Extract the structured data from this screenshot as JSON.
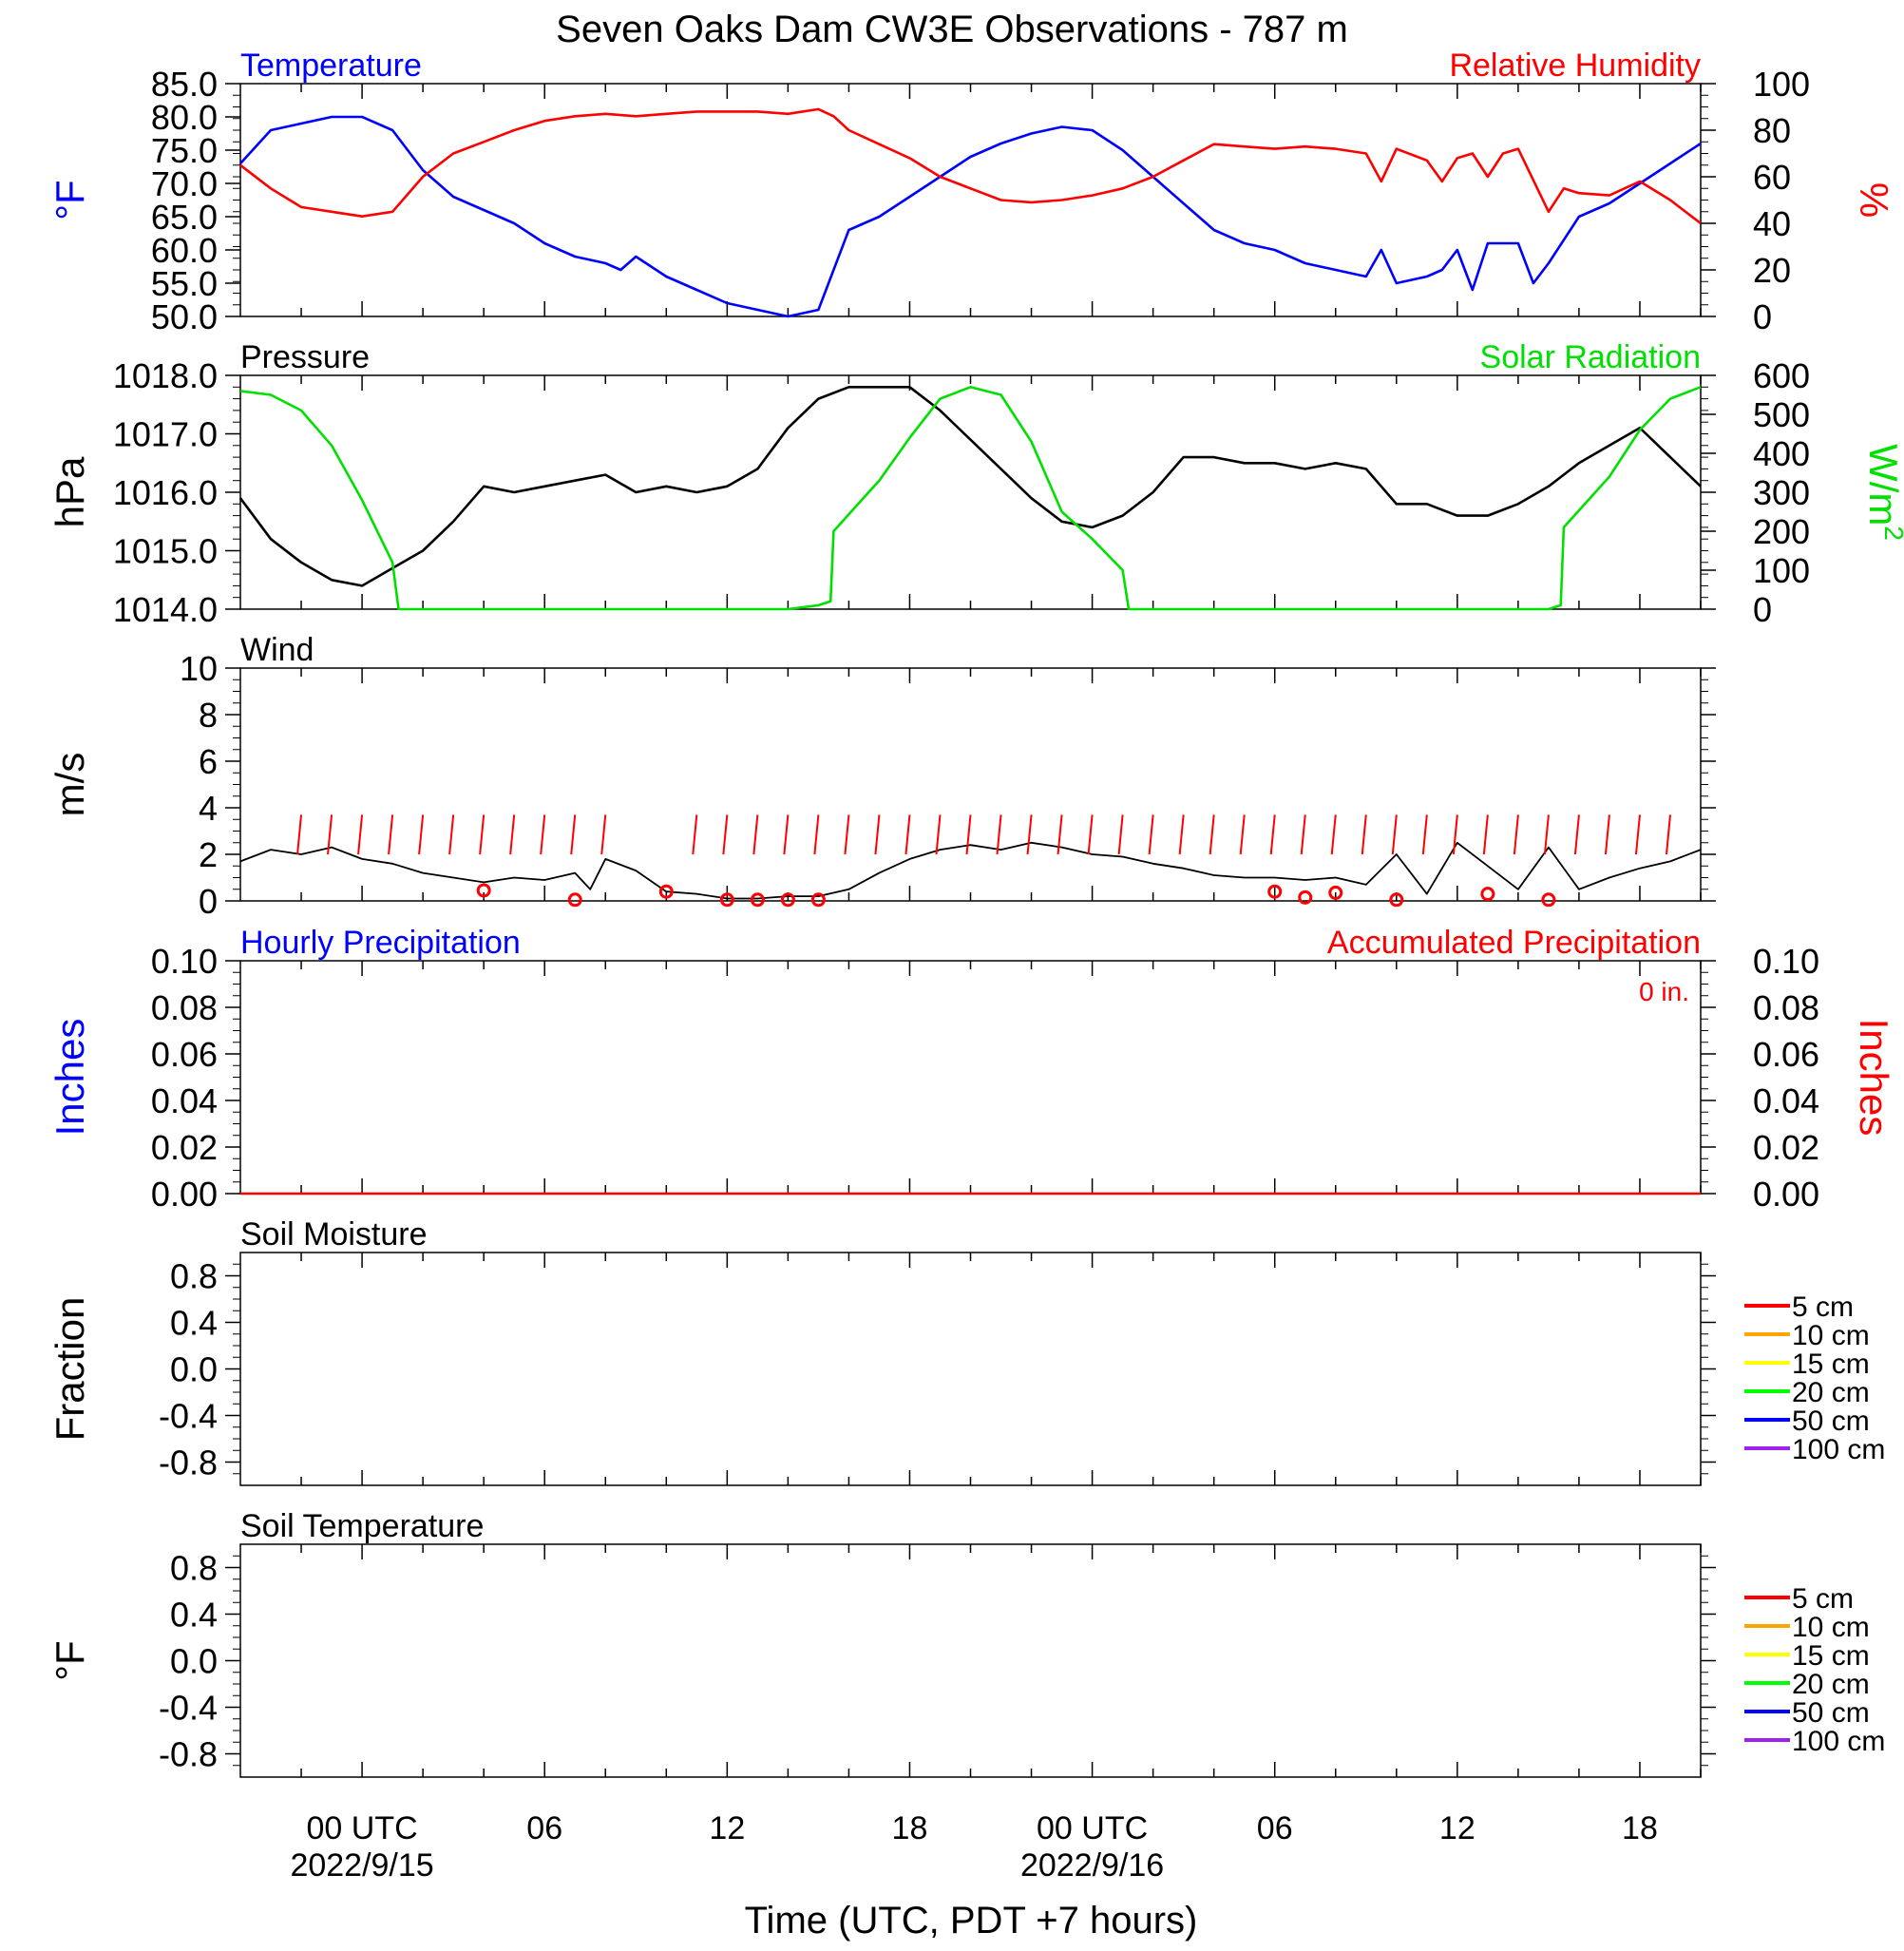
{
  "title": "Seven Oaks Dam CW3E Observations - 787 m",
  "x_axis": {
    "label": "Time (UTC, PDT +7 hours)",
    "range_hours": [
      -4,
      44
    ],
    "tick_labels": [
      {
        "hour": 0,
        "line1": "00 UTC",
        "line2": "2022/9/15"
      },
      {
        "hour": 6,
        "line1": "06",
        "line2": ""
      },
      {
        "hour": 12,
        "line1": "12",
        "line2": ""
      },
      {
        "hour": 18,
        "line1": "18",
        "line2": ""
      },
      {
        "hour": 24,
        "line1": "00 UTC",
        "line2": "2022/9/16"
      },
      {
        "hour": 30,
        "line1": "06",
        "line2": ""
      },
      {
        "hour": 36,
        "line1": "12",
        "line2": ""
      },
      {
        "hour": 42,
        "line1": "18",
        "line2": ""
      }
    ]
  },
  "chart_data": [
    {
      "type": "line",
      "panel": "temperature",
      "left_title": "Temperature",
      "right_title": "Relative Humidity",
      "ylabel_left": "°F",
      "ylabel_right": "%",
      "ylim_left": [
        50,
        85
      ],
      "ylim_right": [
        0,
        100
      ],
      "yticks_left": [
        "50.0",
        "55.0",
        "60.0",
        "65.0",
        "70.0",
        "75.0",
        "80.0",
        "85.0"
      ],
      "yticks_right": [
        "0",
        "20",
        "40",
        "60",
        "80",
        "100"
      ],
      "colors": {
        "left": "#0000ff",
        "right": "#ff0000"
      },
      "series": [
        {
          "axis": "left",
          "color": "#0000ff",
          "x": [
            -4,
            -3,
            -2,
            -1,
            0,
            1,
            2,
            3,
            4,
            5,
            6,
            7,
            8,
            8.5,
            9,
            10,
            11,
            12,
            13,
            14,
            15,
            15.5,
            16,
            17,
            18,
            19,
            20,
            21,
            22,
            23,
            24,
            25,
            26,
            27,
            28,
            29,
            30,
            31,
            32,
            33,
            33.5,
            34,
            35,
            35.5,
            36,
            36.5,
            37,
            37.5,
            38,
            38.5,
            39,
            40,
            41,
            42,
            43,
            44
          ],
          "y": [
            73,
            78,
            79,
            80,
            80,
            78,
            72,
            68,
            66,
            64,
            61,
            59,
            58,
            57,
            59,
            56,
            54,
            52,
            51,
            50,
            51,
            57,
            63,
            65,
            68,
            71,
            74,
            76,
            77.5,
            78.5,
            78,
            75,
            71,
            67,
            63,
            61,
            60,
            58,
            57,
            56,
            60,
            55,
            56,
            57,
            60,
            54,
            61,
            61,
            61,
            55,
            58,
            65,
            67,
            70,
            73,
            76
          ]
        },
        {
          "axis": "right",
          "color": "#ff0000",
          "x": [
            -4,
            -3,
            -2,
            -1,
            0,
            1,
            2,
            3,
            4,
            5,
            6,
            7,
            8,
            9,
            10,
            11,
            12,
            13,
            14,
            15,
            15.5,
            16,
            17,
            18,
            19,
            20,
            21,
            22,
            23,
            24,
            25,
            26,
            27,
            28,
            29,
            30,
            31,
            32,
            33,
            33.5,
            34,
            35,
            35.5,
            36,
            36.5,
            37,
            37.5,
            38,
            39,
            39.5,
            40,
            41,
            42,
            43,
            44
          ],
          "y": [
            65,
            55,
            47,
            45,
            43,
            45,
            60,
            70,
            75,
            80,
            84,
            86,
            87,
            86,
            87,
            88,
            88,
            88,
            87,
            89,
            86,
            80,
            74,
            68,
            60,
            55,
            50,
            49,
            50,
            52,
            55,
            60,
            67,
            74,
            73,
            72,
            73,
            72,
            70,
            58,
            72,
            67,
            58,
            68,
            70,
            60,
            70,
            72,
            45,
            55,
            53,
            52,
            58,
            50,
            40
          ]
        }
      ]
    },
    {
      "type": "line",
      "panel": "pressure",
      "left_title": "Pressure",
      "right_title": "Solar Radiation",
      "ylabel_left": "hPa",
      "ylabel_right": "W/m2",
      "ylim_left": [
        1014,
        1018
      ],
      "ylim_right": [
        0,
        600
      ],
      "yticks_left": [
        "1014.0",
        "1015.0",
        "1016.0",
        "1017.0",
        "1018.0"
      ],
      "yticks_right": [
        "0",
        "100",
        "200",
        "300",
        "400",
        "500",
        "600"
      ],
      "colors": {
        "left": "#000000",
        "right": "#00e000"
      },
      "series": [
        {
          "axis": "left",
          "color": "#000000",
          "x": [
            -4,
            -3,
            -2,
            -1,
            0,
            1,
            2,
            3,
            4,
            5,
            6,
            7,
            8,
            9,
            10,
            11,
            12,
            13,
            14,
            15,
            16,
            17,
            18,
            19,
            20,
            21,
            22,
            23,
            24,
            25,
            26,
            27,
            28,
            29,
            30,
            31,
            32,
            33,
            34,
            35,
            36,
            37,
            38,
            39,
            40,
            41,
            42,
            43,
            44
          ],
          "y": [
            1015.9,
            1015.2,
            1014.8,
            1014.5,
            1014.4,
            1014.7,
            1015.0,
            1015.5,
            1016.1,
            1016.0,
            1016.1,
            1016.2,
            1016.3,
            1016.0,
            1016.1,
            1016.0,
            1016.1,
            1016.4,
            1017.1,
            1017.6,
            1017.8,
            1017.8,
            1017.8,
            1017.4,
            1016.9,
            1016.4,
            1015.9,
            1015.5,
            1015.4,
            1015.6,
            1016.0,
            1016.6,
            1016.6,
            1016.5,
            1016.5,
            1016.4,
            1016.5,
            1016.4,
            1015.8,
            1015.8,
            1015.6,
            1015.6,
            1015.8,
            1016.1,
            1016.5,
            1016.8,
            1017.1,
            1016.6,
            1016.1
          ]
        },
        {
          "axis": "right",
          "color": "#00e000",
          "x": [
            -4,
            -3,
            -2,
            -1,
            0,
            1,
            1.2,
            2,
            3,
            4,
            5,
            6,
            7,
            8,
            9,
            10,
            11,
            12,
            13,
            14,
            15,
            15.4,
            15.5,
            17,
            18,
            19,
            20,
            21,
            22,
            23,
            24,
            25,
            25.2,
            26,
            27,
            28,
            29,
            30,
            31,
            32,
            33,
            34,
            35,
            36,
            37,
            38,
            39,
            39.4,
            39.5,
            41,
            42,
            43,
            44
          ],
          "y": [
            560,
            550,
            510,
            420,
            280,
            120,
            0,
            0,
            0,
            0,
            0,
            0,
            0,
            0,
            0,
            0,
            0,
            0,
            0,
            0,
            10,
            20,
            200,
            330,
            440,
            540,
            570,
            550,
            430,
            250,
            180,
            100,
            0,
            0,
            0,
            0,
            0,
            0,
            0,
            0,
            0,
            0,
            0,
            0,
            0,
            0,
            0,
            10,
            210,
            340,
            460,
            540,
            570
          ]
        }
      ]
    },
    {
      "type": "line",
      "panel": "wind",
      "left_title": "Wind",
      "ylabel_left": "m/s",
      "ylim_left": [
        0,
        10
      ],
      "yticks_left": [
        "0",
        "2",
        "4",
        "6",
        "8",
        "10"
      ],
      "series": [
        {
          "axis": "left",
          "color": "#000000",
          "x": [
            -4,
            -3,
            -2,
            -1,
            0,
            1,
            2,
            3,
            4,
            5,
            6,
            7,
            7.5,
            8,
            9,
            10,
            11,
            12,
            13,
            14,
            15,
            16,
            17,
            18,
            19,
            20,
            21,
            22,
            23,
            24,
            25,
            26,
            27,
            28,
            29,
            30,
            31,
            32,
            33,
            34,
            35,
            36,
            37,
            38,
            39,
            40,
            41,
            42,
            43,
            44
          ],
          "y": [
            1.7,
            2.2,
            2.0,
            2.3,
            1.8,
            1.6,
            1.2,
            1.0,
            0.8,
            1.0,
            0.9,
            1.2,
            0.5,
            1.8,
            1.3,
            0.4,
            0.3,
            0.1,
            0.1,
            0.2,
            0.2,
            0.5,
            1.2,
            1.8,
            2.2,
            2.4,
            2.2,
            2.5,
            2.3,
            2.0,
            1.9,
            1.6,
            1.4,
            1.1,
            1.0,
            1.0,
            0.9,
            1.0,
            0.7,
            2.0,
            0.3,
            2.5,
            1.5,
            0.5,
            2.3,
            0.5,
            1.0,
            1.4,
            1.7,
            2.2
          ]
        }
      ],
      "calm_markers": {
        "color": "#ff0000",
        "x": [
          4,
          7,
          10,
          12,
          13,
          14,
          15,
          30,
          31,
          32,
          34,
          37,
          39
        ],
        "y": [
          0.45,
          0.05,
          0.4,
          0.05,
          0.05,
          0.05,
          0.05,
          0.4,
          0.15,
          0.35,
          0.05,
          0.3,
          0.05
        ]
      },
      "barbs": {
        "color": "#ff0000",
        "x": [
          -2,
          -1,
          0,
          1,
          2,
          3,
          4,
          5,
          6,
          7,
          8,
          11,
          12,
          13,
          14,
          15,
          16,
          17,
          18,
          19,
          20,
          21,
          22,
          23,
          24,
          25,
          26,
          27,
          28,
          29,
          30,
          31,
          32,
          33,
          34,
          35,
          36,
          37,
          38,
          39,
          40,
          41,
          42,
          43
        ]
      }
    },
    {
      "type": "line",
      "panel": "precipitation",
      "left_title": "Hourly Precipitation",
      "right_title": "Accumulated Precipitation",
      "annotation": "0 in.",
      "ylabel_left": "Inches",
      "ylabel_right": "Inches",
      "ylim_left": [
        0,
        0.1
      ],
      "ylim_right": [
        0,
        0.1
      ],
      "yticks_left": [
        "0.00",
        "0.02",
        "0.04",
        "0.06",
        "0.08",
        "0.10"
      ],
      "yticks_right": [
        "0.00",
        "0.02",
        "0.04",
        "0.06",
        "0.08",
        "0.10"
      ],
      "colors": {
        "left": "#0000ff",
        "right": "#ff0000"
      },
      "series": [
        {
          "axis": "right",
          "color": "#ff0000",
          "x": [
            -4,
            44
          ],
          "y": [
            0,
            0
          ]
        }
      ]
    },
    {
      "type": "line",
      "panel": "soil_moisture",
      "left_title": "Soil Moisture",
      "ylabel_left": "Fraction",
      "ylim_left": [
        -1,
        1
      ],
      "yticks_left": [
        "-0.8",
        "-0.4",
        "0.0",
        "0.4",
        "0.8"
      ],
      "legend": [
        {
          "label": "5 cm",
          "color": "#ff0000"
        },
        {
          "label": "10 cm",
          "color": "#ffa500"
        },
        {
          "label": "15 cm",
          "color": "#ffff00"
        },
        {
          "label": "20 cm",
          "color": "#00ff00"
        },
        {
          "label": "50 cm",
          "color": "#0000ff"
        },
        {
          "label": "100 cm",
          "color": "#a020f0"
        }
      ],
      "series": []
    },
    {
      "type": "line",
      "panel": "soil_temperature",
      "left_title": "Soil Temperature",
      "ylabel_left": "°F",
      "ylim_left": [
        -1,
        1
      ],
      "yticks_left": [
        "-0.8",
        "-0.4",
        "0.0",
        "0.4",
        "0.8"
      ],
      "legend": [
        {
          "label": "5 cm",
          "color": "#ff0000"
        },
        {
          "label": "10 cm",
          "color": "#ffa500"
        },
        {
          "label": "15 cm",
          "color": "#ffff00"
        },
        {
          "label": "20 cm",
          "color": "#00ff00"
        },
        {
          "label": "50 cm",
          "color": "#0000ff"
        },
        {
          "label": "100 cm",
          "color": "#a020f0"
        }
      ],
      "series": []
    }
  ]
}
